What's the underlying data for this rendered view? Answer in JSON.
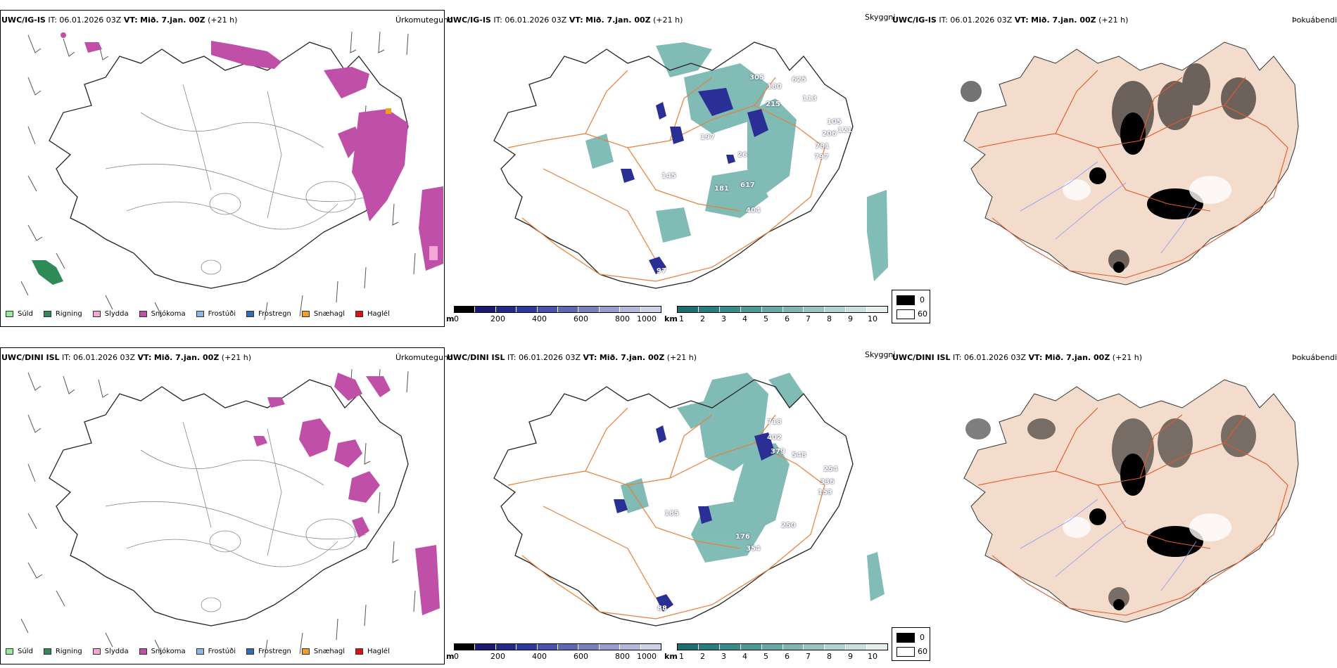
{
  "rows": [
    {
      "model": "UWC/IG-IS",
      "it_label": "IT:",
      "it_value": "06.01.2026 03Z",
      "vt_label": "VT:",
      "vt_value": "Mið. 7.jan. 00Z",
      "lead": "(+21 h)",
      "ceiling_labels": [
        "180",
        "305",
        "625",
        "215",
        "113",
        "105",
        "206",
        "121",
        "781",
        "797",
        "145",
        "181",
        "617",
        "404",
        "97",
        "26",
        "197"
      ],
      "fields": [
        "Úrkomutegund",
        "Skyggni",
        "Þokuábendi"
      ]
    },
    {
      "model": "UWC/DINI ISL",
      "it_label": "IT:",
      "it_value": "06.01.2026 03Z",
      "vt_label": "VT:",
      "vt_value": "Mið. 7.jan. 00Z",
      "lead": "(+21 h)",
      "ceiling_labels": [
        "718",
        "402",
        "379",
        "548",
        "254",
        "336",
        "153",
        "185",
        "176",
        "354",
        "250",
        "88"
      ],
      "fields": [
        "Úrkomutegund",
        "Skyggni",
        "Þokuábendi"
      ]
    }
  ],
  "precip_legend": [
    {
      "label": "Súld",
      "color": "#90ee90"
    },
    {
      "label": "Rigning",
      "color": "#2e8b57"
    },
    {
      "label": "Slydda",
      "color": "#f4a6d7"
    },
    {
      "label": "Snjókoma",
      "color": "#c04fa8"
    },
    {
      "label": "Frostúði",
      "color": "#87b8ea"
    },
    {
      "label": "Frostregn",
      "color": "#2f6db5"
    },
    {
      "label": "Snæhagl",
      "color": "#f0a020"
    },
    {
      "label": "Haglél",
      "color": "#e01010"
    }
  ],
  "ceiling_bar": {
    "unit": "m",
    "ticks": [
      "0",
      "200",
      "400",
      "600",
      "800",
      "1000"
    ],
    "colors": [
      "#000000",
      "#1a1a6e",
      "#232a8c",
      "#2e3a9e",
      "#4a52aa",
      "#6068b4",
      "#7a80c0",
      "#989ed0",
      "#b4b8dc",
      "#cfd1e8"
    ]
  },
  "vis_bar": {
    "unit": "km",
    "ticks": [
      "1",
      "2",
      "3",
      "4",
      "5",
      "6",
      "7",
      "8",
      "9",
      "10"
    ],
    "colors": [
      "#1d6e6e",
      "#2a7d7d",
      "#3a8c8a",
      "#4f9a96",
      "#66a8a3",
      "#7fb6b1",
      "#98c4bf",
      "#b2d2ce",
      "#cce0dd",
      "#e6efed"
    ]
  },
  "fog_legend": [
    "0",
    "60"
  ],
  "colors": {
    "snow": "#c04fa8",
    "rain": "#2e8b57",
    "fog_land": "#f3dccb",
    "roads": "#e8803a",
    "vis_teal": "#2f8f86",
    "ceiling_blue": "#2a2f96"
  }
}
